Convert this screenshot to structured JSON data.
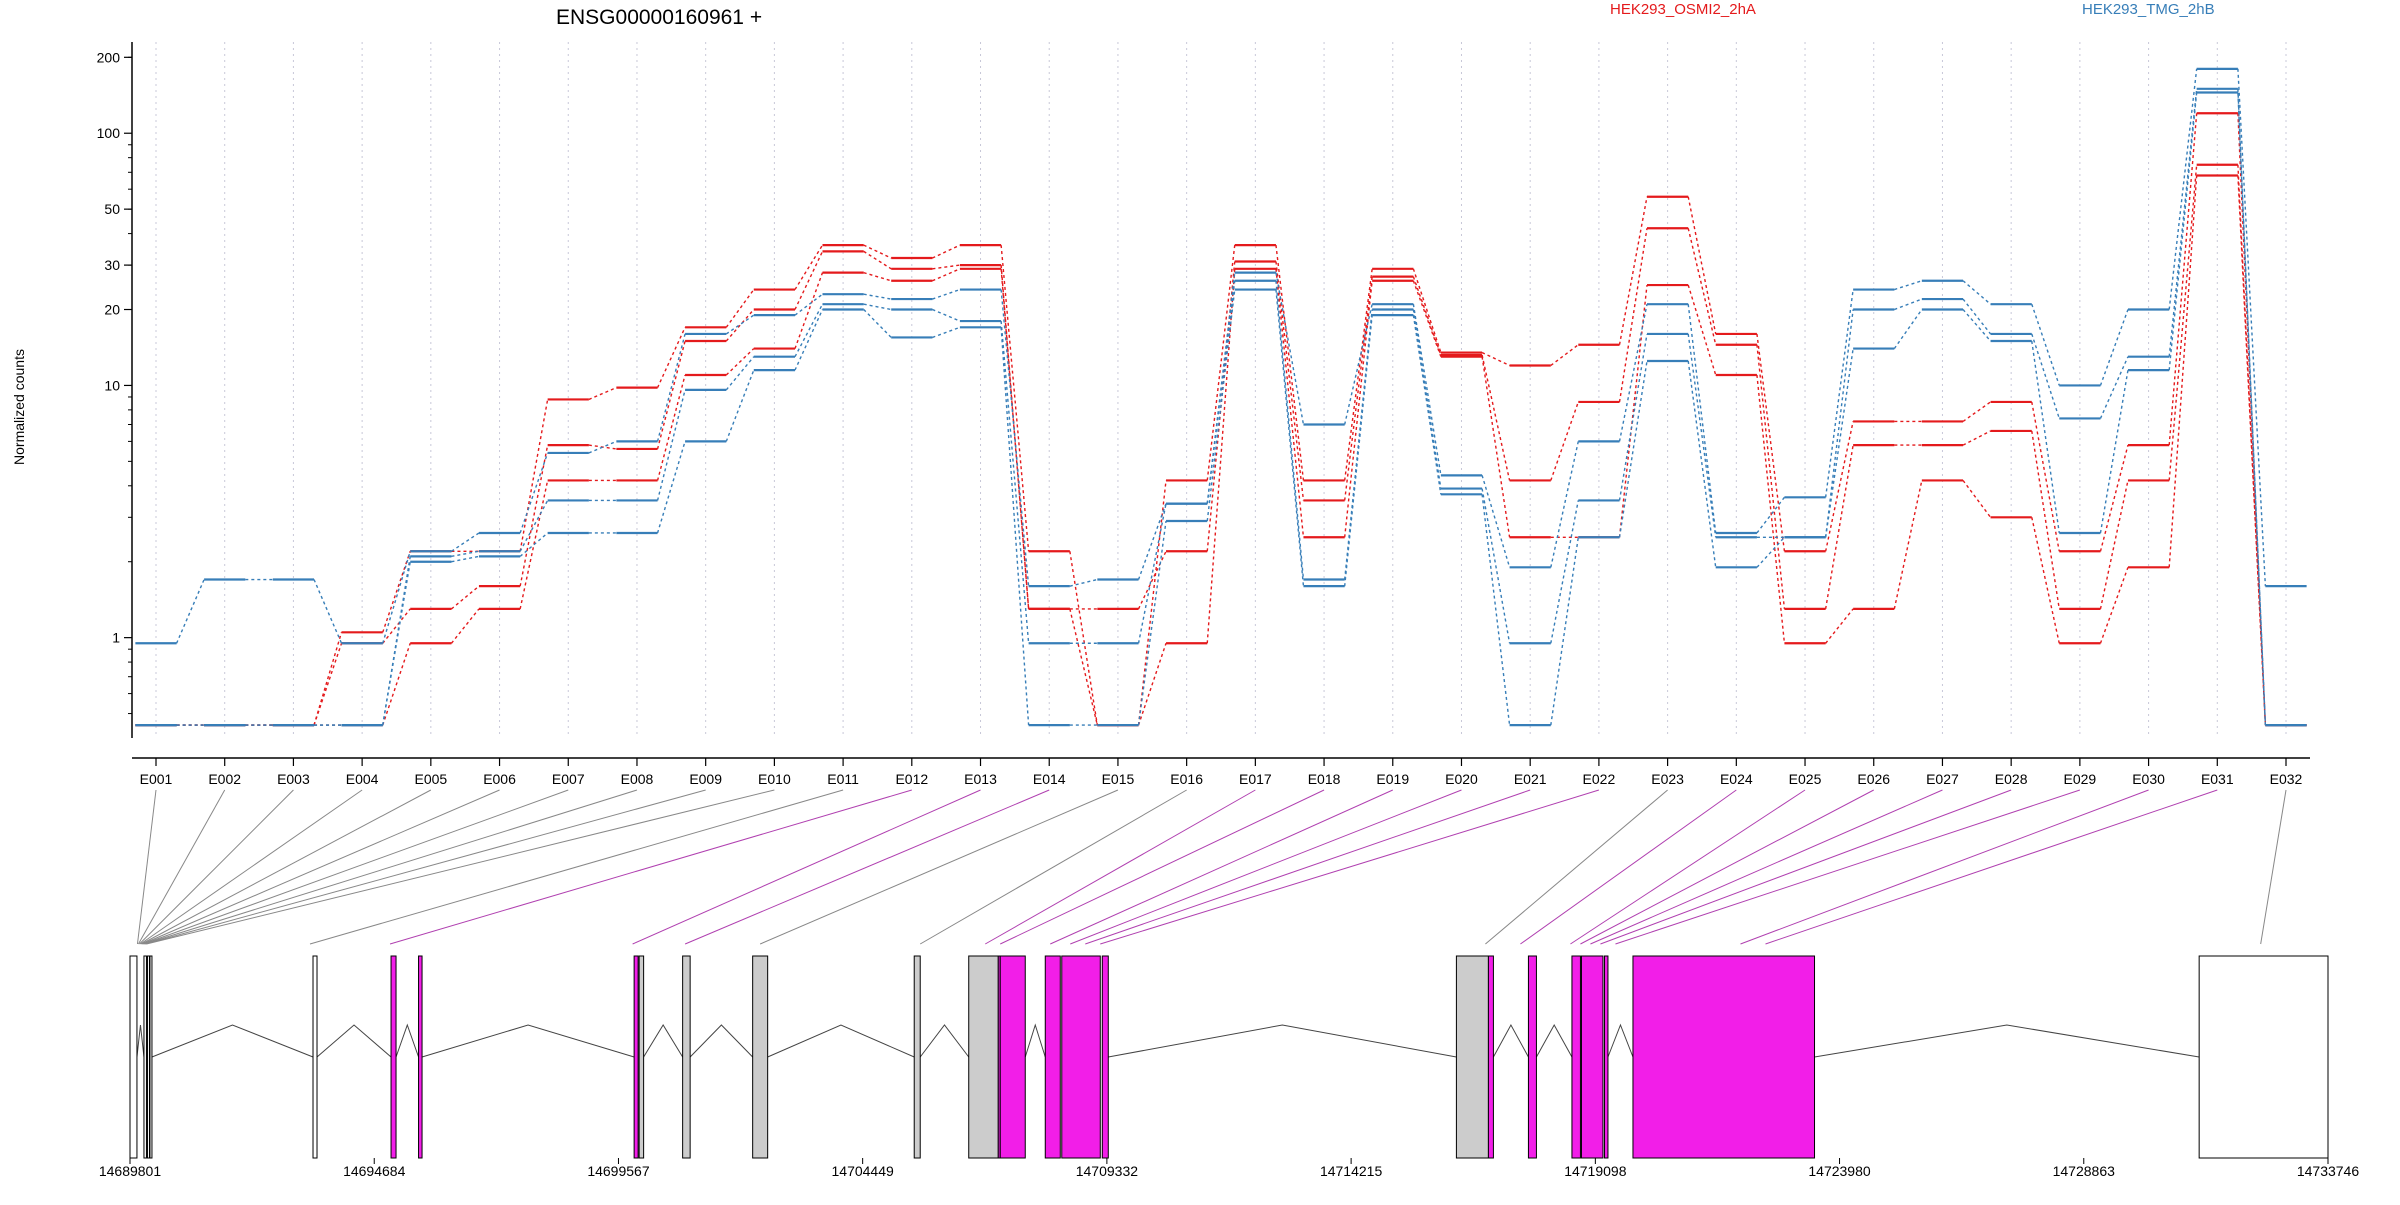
{
  "chart_data": [
    {
      "type": "line",
      "title": "ENSG00000160961 +",
      "ylabel": "Normalized counts",
      "xlabel": "",
      "scale": "log",
      "ylim": [
        0.4,
        230
      ],
      "y_ticks": [
        "1",
        "10",
        "20",
        "30",
        "50",
        "100",
        "200"
      ],
      "y_tick_values": [
        1,
        10,
        20,
        30,
        50,
        100,
        200
      ],
      "grid": "vertical dotted lines at each exon",
      "legend_position": "top",
      "categories": [
        "E001",
        "E002",
        "E003",
        "E004",
        "E005",
        "E006",
        "E007",
        "E008",
        "E009",
        "E010",
        "E011",
        "E012",
        "E013",
        "E014",
        "E015",
        "E016",
        "E017",
        "E018",
        "E019",
        "E020",
        "E021",
        "E022",
        "E023",
        "E024",
        "E025",
        "E026",
        "E027",
        "E028",
        "E029",
        "E030",
        "E031",
        "E032"
      ],
      "series": [
        {
          "name": "HEK293_OSMI2_2hA",
          "color": "#e41a1c",
          "values": [
            0.45,
            0.45,
            0.45,
            1.05,
            2.2,
            2.2,
            8.8,
            9.8,
            17,
            24,
            36,
            32,
            36,
            2.2,
            0.45,
            4.2,
            36,
            4.2,
            29,
            13.5,
            12,
            14.5,
            56,
            16,
            2.2,
            7.2,
            7.2,
            8.6,
            2.2,
            5.8,
            120,
            0.45
          ]
        },
        {
          "name": "",
          "color": "#e41a1c",
          "values": [
            0.45,
            0.45,
            0.45,
            0.95,
            1.3,
            1.6,
            5.8,
            5.6,
            15,
            20,
            34,
            29,
            30,
            1.3,
            1.3,
            2.2,
            31,
            3.5,
            27,
            13.2,
            4.2,
            8.6,
            42,
            14.5,
            1.3,
            5.8,
            5.8,
            6.6,
            1.3,
            4.2,
            75,
            0.45
          ]
        },
        {
          "name": "",
          "color": "#e41a1c",
          "values": [
            0.45,
            0.45,
            0.45,
            0.45,
            0.95,
            1.3,
            4.2,
            4.2,
            11,
            14,
            28,
            26,
            29,
            1.3,
            0.45,
            0.95,
            29,
            2.5,
            26,
            13.0,
            2.5,
            2.5,
            25,
            11,
            0.95,
            1.3,
            4.2,
            3.0,
            0.95,
            1.9,
            68,
            0.45
          ]
        },
        {
          "name": "HEK293_TMG_2hB",
          "color": "#377eb8",
          "values": [
            0.95,
            1.7,
            1.7,
            0.95,
            2.2,
            2.6,
            5.4,
            6.0,
            16,
            19,
            23,
            22,
            24,
            1.6,
            1.7,
            3.4,
            28,
            7.0,
            21,
            4.4,
            1.9,
            6.0,
            21,
            2.6,
            3.6,
            24,
            26,
            21,
            10,
            20,
            180,
            1.6
          ]
        },
        {
          "name": "",
          "color": "#377eb8",
          "values": [
            0.45,
            0.45,
            0.45,
            0.45,
            2.1,
            2.2,
            3.5,
            3.5,
            9.6,
            13,
            21,
            20,
            18,
            0.95,
            0.95,
            3.4,
            26,
            1.7,
            20,
            3.9,
            0.95,
            3.5,
            16,
            2.5,
            2.5,
            20,
            22,
            16,
            7.4,
            13,
            150,
            0.45
          ]
        },
        {
          "name": "",
          "color": "#377eb8",
          "values": [
            0.45,
            0.45,
            0.45,
            0.45,
            2.0,
            2.1,
            2.6,
            2.6,
            6.0,
            11.5,
            20,
            15.5,
            17,
            0.45,
            0.45,
            2.9,
            24,
            1.6,
            19,
            3.7,
            0.45,
            2.5,
            12.5,
            1.9,
            2.5,
            14,
            20,
            15,
            2.6,
            11.5,
            145,
            0.45
          ]
        }
      ]
    },
    {
      "type": "gene-model",
      "x_ticks": [
        "14689801",
        "14694684",
        "14699567",
        "14704449",
        "14709332",
        "14714215",
        "14719098",
        "14723980",
        "14728863",
        "14733746"
      ],
      "x_tick_values": [
        14689801,
        14694684,
        14699567,
        14704449,
        14709332,
        14714215,
        14719098,
        14723980,
        14728863,
        14733746
      ],
      "xlim": [
        14689801,
        14733746
      ],
      "colors": {
        "constitutive": "#ffffff",
        "non_tested": "#cccccc",
        "differential": "#f21ee8",
        "link": "#888888",
        "link_diff": "#b040b0"
      },
      "features": [
        {
          "start": 14689801,
          "end": 14689940,
          "type": "constitutive"
        },
        {
          "start": 14690080,
          "end": 14690130,
          "type": "constitutive"
        },
        {
          "start": 14690150,
          "end": 14690190,
          "type": "constitutive"
        },
        {
          "start": 14690200,
          "end": 14690240,
          "type": "constitutive"
        },
        {
          "start": 14693460,
          "end": 14693540,
          "type": "constitutive"
        },
        {
          "start": 14695020,
          "end": 14695120,
          "type": "differential"
        },
        {
          "start": 14695570,
          "end": 14695640,
          "type": "differential"
        },
        {
          "start": 14699880,
          "end": 14699960,
          "type": "differential"
        },
        {
          "start": 14699980,
          "end": 14700070,
          "type": "non_tested"
        },
        {
          "start": 14700850,
          "end": 14701000,
          "type": "non_tested"
        },
        {
          "start": 14702250,
          "end": 14702550,
          "type": "non_tested"
        },
        {
          "start": 14705480,
          "end": 14705600,
          "type": "non_tested"
        },
        {
          "start": 14706570,
          "end": 14707160,
          "type": "non_tested"
        },
        {
          "start": 14707160,
          "end": 14707200,
          "type": "differential"
        },
        {
          "start": 14707200,
          "end": 14707700,
          "type": "differential"
        },
        {
          "start": 14708100,
          "end": 14708400,
          "type": "differential"
        },
        {
          "start": 14708430,
          "end": 14709200,
          "type": "differential"
        },
        {
          "start": 14709240,
          "end": 14709360,
          "type": "differential"
        },
        {
          "start": 14716320,
          "end": 14716960,
          "type": "non_tested"
        },
        {
          "start": 14716960,
          "end": 14717060,
          "type": "differential"
        },
        {
          "start": 14717760,
          "end": 14717920,
          "type": "differential"
        },
        {
          "start": 14718630,
          "end": 14718800,
          "type": "differential"
        },
        {
          "start": 14718820,
          "end": 14719250,
          "type": "differential"
        },
        {
          "start": 14719280,
          "end": 14719350,
          "type": "differential"
        },
        {
          "start": 14719850,
          "end": 14723480,
          "type": "differential"
        },
        {
          "start": 14731170,
          "end": 14733746,
          "type": "constitutive"
        }
      ],
      "link_targets": [
        14689950,
        14689970,
        14689990,
        14690010,
        14690030,
        14690050,
        14690070,
        14690090,
        14690110,
        14690130,
        14693400,
        14695000,
        14699850,
        14700900,
        14702400,
        14705600,
        14706900,
        14707200,
        14708200,
        14708600,
        14708900,
        14709200,
        14716900,
        14717600,
        14718600,
        14718800,
        14719000,
        14719200,
        14719500,
        14722000,
        14722500,
        14732400
      ],
      "differential_links": [
        false,
        false,
        false,
        false,
        false,
        false,
        false,
        false,
        false,
        false,
        false,
        true,
        true,
        true,
        false,
        false,
        true,
        true,
        true,
        true,
        true,
        true,
        false,
        true,
        true,
        true,
        true,
        true,
        true,
        true,
        true,
        false
      ]
    }
  ]
}
